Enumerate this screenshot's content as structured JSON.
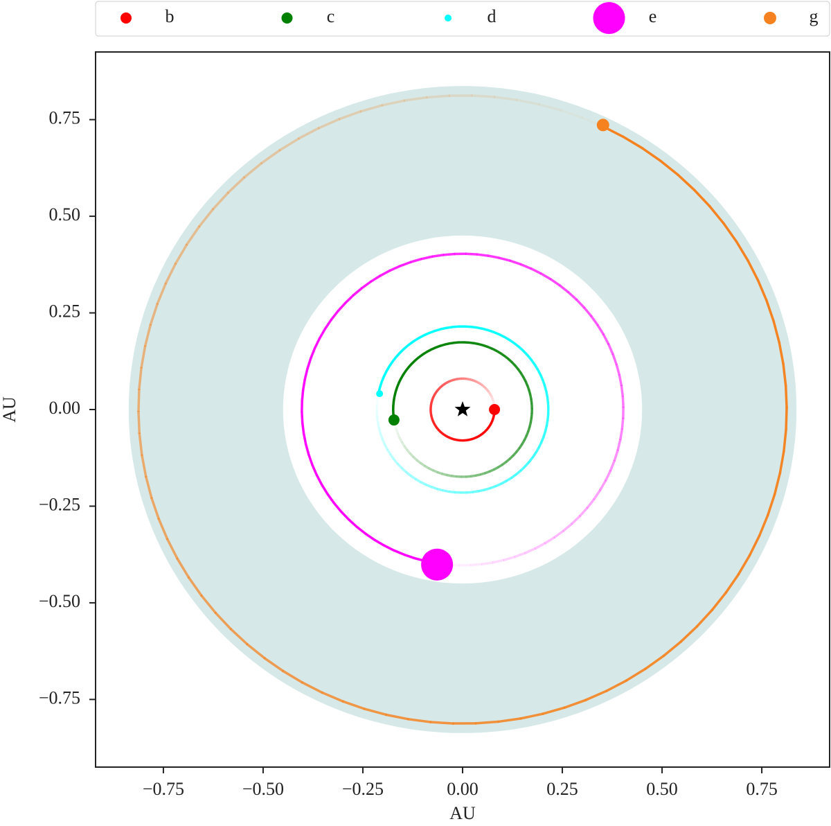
{
  "chart_data": {
    "type": "orbits",
    "xlabel": "AU",
    "ylabel": "AU",
    "xlim": [
      -0.92,
      0.92
    ],
    "ylim": [
      -0.925,
      0.925
    ],
    "xticks": [
      {
        "value": -0.75,
        "label": "−0.75"
      },
      {
        "value": -0.5,
        "label": "−0.50"
      },
      {
        "value": -0.25,
        "label": "−0.25"
      },
      {
        "value": 0,
        "label": "0.00"
      },
      0.25,
      {
        "value": 0.5,
        "label": "0.50"
      },
      0.75
    ],
    "yticks": [
      {
        "value": -0.75,
        "label": "−0.75"
      },
      {
        "value": -0.5,
        "label": "−0.50"
      },
      {
        "value": -0.25,
        "label": "−0.25"
      },
      {
        "value": 0,
        "label": "0.00"
      },
      0.25,
      {
        "value": 0.5,
        "label": "0.50"
      },
      0.75
    ],
    "habitable_zone": {
      "inner": 0.45,
      "outer": 0.837,
      "color": "#d6e9e8"
    },
    "legend": "upper center",
    "series": [
      {
        "name": "b",
        "color": "#ff0000",
        "radius": 0.08,
        "x": 0.08,
        "y": 0.0,
        "marker_size": 8
      },
      {
        "name": "c",
        "color": "#008000",
        "radius": 0.174,
        "x": -0.172,
        "y": -0.027,
        "marker_size": 8
      },
      {
        "name": "d",
        "color": "#00ffff",
        "radius": 0.215,
        "x": -0.208,
        "y": 0.041,
        "marker_size": 5
      },
      {
        "name": "e",
        "color": "#ff00ff",
        "radius": 0.403,
        "x": -0.064,
        "y": -0.401,
        "marker_size": 23
      },
      {
        "name": "g",
        "color": "#f5821f",
        "radius": 0.8125,
        "x": 0.352,
        "y": 0.736,
        "marker_size": 9
      }
    ]
  }
}
